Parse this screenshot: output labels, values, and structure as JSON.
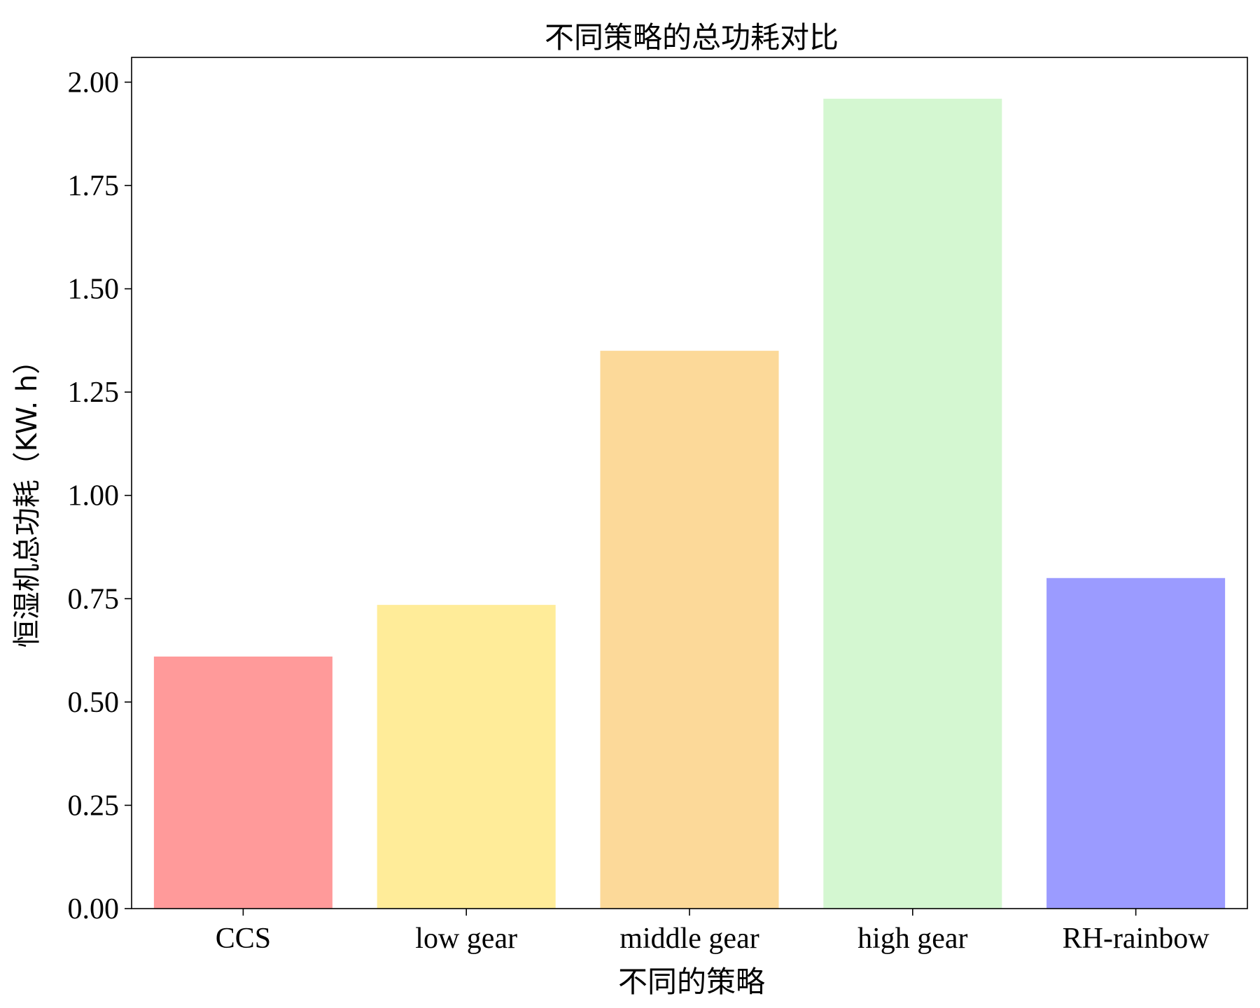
{
  "chart_data": {
    "type": "bar",
    "title": "不同策略的总功耗对比",
    "xlabel": "不同的策略",
    "ylabel": "恒湿机总功耗（KW. h）",
    "categories": [
      "CCS",
      "low gear",
      "middle gear",
      "high gear",
      "RH-rainbow"
    ],
    "values": [
      0.61,
      0.735,
      1.35,
      1.96,
      0.8
    ],
    "colors": [
      "#ff9a9a",
      "#ffec99",
      "#fcd999",
      "#d4f7d1",
      "#9b9bff"
    ],
    "ylim": [
      0,
      2.06
    ],
    "yticks": [
      0.0,
      0.25,
      0.5,
      0.75,
      1.0,
      1.25,
      1.5,
      1.75,
      2.0
    ],
    "ytick_labels": [
      "0.00",
      "0.25",
      "0.50",
      "0.75",
      "1.00",
      "1.25",
      "1.50",
      "1.75",
      "2.00"
    ],
    "grid": false,
    "legend": "none"
  }
}
